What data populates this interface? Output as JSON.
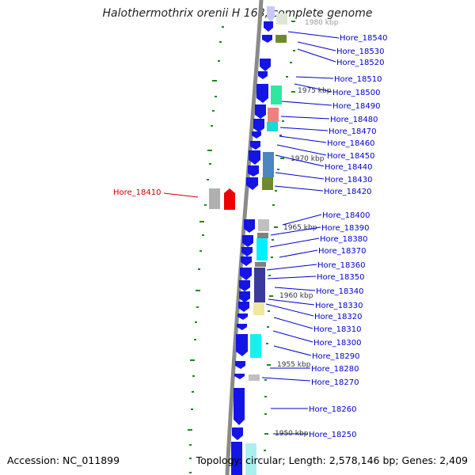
{
  "title": "Halothermothrix orenii H 168, complete genome",
  "accession": "Accession: NC_011899",
  "topology": "Topology: circular; Length: 2,578,146 bp; Genes: 2,409",
  "colors": {
    "gene_link": "#0000cc",
    "gene_highlight": "#cc0000",
    "backbone": "#8a8a8a",
    "arrow": "#1414e6",
    "tick": "#1a8a1a"
  },
  "kbp_marks": [
    {
      "label": "1980 kbp"
    },
    {
      "label": "1975 kbp"
    },
    {
      "label": "1970 kbp"
    },
    {
      "label": "1965 kbp"
    },
    {
      "label": "1960 kbp"
    },
    {
      "label": "1955 kbp"
    },
    {
      "label": "1950 kbp"
    }
  ],
  "genes": [
    {
      "label": "Hore_18540"
    },
    {
      "label": "Hore_18530"
    },
    {
      "label": "Hore_18520"
    },
    {
      "label": "Hore_18510"
    },
    {
      "label": "Hore_18500"
    },
    {
      "label": "Hore_18490"
    },
    {
      "label": "Hore_18480"
    },
    {
      "label": "Hore_18470"
    },
    {
      "label": "Hore_18460"
    },
    {
      "label": "Hore_18450"
    },
    {
      "label": "Hore_18440"
    },
    {
      "label": "Hore_18430"
    },
    {
      "label": "Hore_18420"
    },
    {
      "label": "Hore_18410",
      "highlight": true
    },
    {
      "label": "Hore_18400"
    },
    {
      "label": "Hore_18390"
    },
    {
      "label": "Hore_18380"
    },
    {
      "label": "Hore_18370"
    },
    {
      "label": "Hore_18360"
    },
    {
      "label": "Hore_18350"
    },
    {
      "label": "Hore_18340"
    },
    {
      "label": "Hore_18330"
    },
    {
      "label": "Hore_18320"
    },
    {
      "label": "Hore_18310"
    },
    {
      "label": "Hore_18300"
    },
    {
      "label": "Hore_18290"
    },
    {
      "label": "Hore_18280"
    },
    {
      "label": "Hore_18270"
    },
    {
      "label": "Hore_18260"
    },
    {
      "label": "Hore_18250"
    }
  ]
}
